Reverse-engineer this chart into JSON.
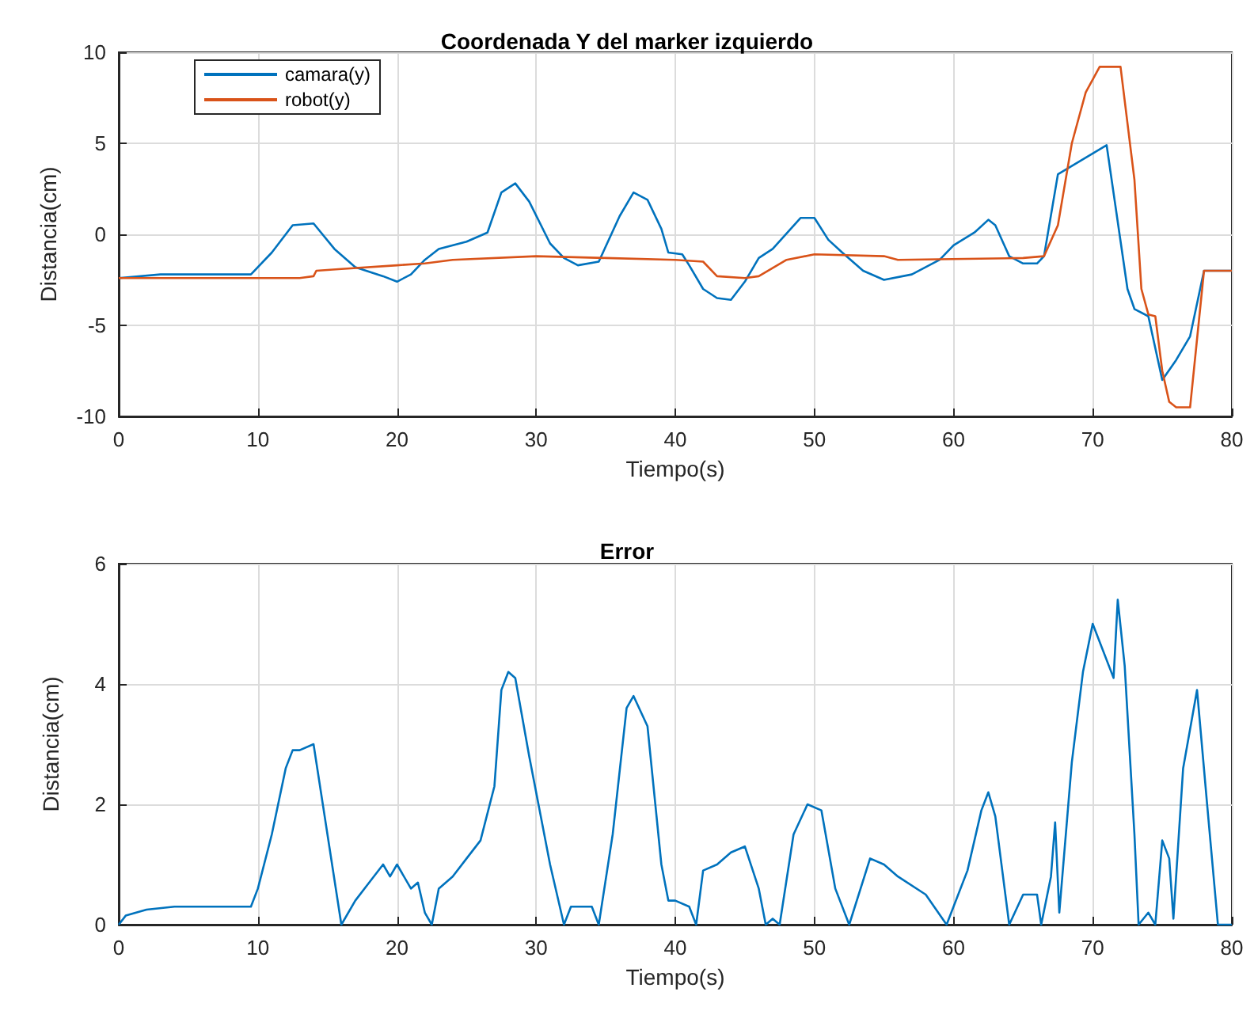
{
  "chart_data": [
    {
      "type": "line",
      "title": "Coordenada Y del marker izquierdo",
      "xlabel": "Tiempo(s)",
      "ylabel": "Distancia(cm)",
      "xlim": [
        0,
        80
      ],
      "xticks": [
        0,
        10,
        20,
        30,
        40,
        50,
        60,
        70,
        80
      ],
      "ylim": [
        -10,
        10
      ],
      "yticks": [
        -10,
        -5,
        0,
        5,
        10
      ],
      "grid": true,
      "legend": "top left",
      "series": [
        {
          "name": "camara(y)",
          "color": "#0072bd",
          "x": [
            0,
            3,
            9.5,
            11,
            12.5,
            14,
            15.5,
            17,
            19,
            20,
            21,
            22,
            23,
            25,
            26.5,
            27.5,
            28.5,
            29.5,
            31,
            32,
            33,
            34.5,
            36,
            37,
            38,
            39,
            39.5,
            40.5,
            41,
            42,
            43,
            44,
            45,
            46,
            47,
            49,
            50,
            51,
            52,
            53.5,
            55,
            57,
            59,
            60,
            61.5,
            62.5,
            63,
            64,
            65,
            66,
            66.5,
            67.5,
            71,
            72.5,
            73,
            74,
            75,
            76,
            77,
            78,
            80
          ],
          "values": [
            -2.4,
            -2.2,
            -2.2,
            -1,
            0.5,
            0.6,
            -0.8,
            -1.8,
            -2.3,
            -2.6,
            -2.2,
            -1.4,
            -0.8,
            -0.4,
            0.1,
            2.3,
            2.8,
            1.8,
            -0.5,
            -1.3,
            -1.7,
            -1.5,
            1,
            2.3,
            1.9,
            0.3,
            -1,
            -1.1,
            -1.7,
            -3,
            -3.5,
            -3.6,
            -2.6,
            -1.3,
            -0.8,
            0.9,
            0.9,
            -0.3,
            -1,
            -2,
            -2.5,
            -2.2,
            -1.4,
            -0.6,
            0.1,
            0.8,
            0.5,
            -1.2,
            -1.6,
            -1.6,
            -1.2,
            3.3,
            4.9,
            -3,
            -4.1,
            -4.5,
            -8,
            -6.9,
            -5.6,
            -2,
            -2
          ]
        },
        {
          "name": "robot(y)",
          "color": "#d95319",
          "x": [
            0,
            13,
            14,
            14.2,
            16,
            20,
            22,
            24,
            30,
            35,
            40,
            42,
            43,
            45,
            46,
            48,
            50,
            55,
            56,
            65,
            66.5,
            67.5,
            68.5,
            69.5,
            70.5,
            72,
            73,
            73.5,
            74,
            74.5,
            75,
            75.5,
            76,
            77,
            78,
            80
          ],
          "values": [
            -2.4,
            -2.4,
            -2.3,
            -2,
            -1.9,
            -1.7,
            -1.6,
            -1.4,
            -1.2,
            -1.3,
            -1.4,
            -1.5,
            -2.3,
            -2.4,
            -2.3,
            -1.4,
            -1.1,
            -1.2,
            -1.4,
            -1.3,
            -1.2,
            0.5,
            5,
            7.8,
            9.2,
            9.2,
            3,
            -3,
            -4.4,
            -4.5,
            -7.5,
            -9.2,
            -9.5,
            -9.5,
            -2,
            -2
          ]
        }
      ]
    },
    {
      "type": "line",
      "title": "Error",
      "xlabel": "Tiempo(s)",
      "ylabel": "Distancia(cm)",
      "xlim": [
        0,
        80
      ],
      "xticks": [
        0,
        10,
        20,
        30,
        40,
        50,
        60,
        70,
        80
      ],
      "ylim": [
        0,
        6
      ],
      "yticks": [
        0,
        2,
        4,
        6
      ],
      "grid": true,
      "series": [
        {
          "color": "#0072bd",
          "x": [
            0,
            0.5,
            2,
            4,
            6,
            8,
            9.5,
            10,
            11,
            12,
            12.5,
            13,
            14,
            15,
            16,
            17,
            18,
            19,
            19.5,
            20,
            21,
            21.5,
            22,
            22.5,
            23,
            24,
            25,
            26,
            27,
            27.5,
            28,
            28.5,
            29.5,
            31,
            32,
            32.5,
            34,
            34.5,
            35.5,
            36.5,
            37,
            38,
            39,
            39.5,
            40,
            41,
            41.5,
            42,
            43,
            44,
            45,
            46,
            46.5,
            47,
            47.5,
            48.5,
            49.5,
            50.5,
            51.5,
            52.5,
            54,
            55,
            56,
            58,
            59.5,
            61,
            62,
            62.5,
            63,
            64,
            65,
            66,
            66.3,
            67,
            67.3,
            67.6,
            68.5,
            69.3,
            70,
            71.5,
            71.8,
            72.3,
            73,
            73.3,
            74,
            74.5,
            75,
            75.5,
            75.8,
            76.5,
            77.5,
            78.3,
            79,
            80
          ],
          "values": [
            0,
            0.15,
            0.25,
            0.3,
            0.3,
            0.3,
            0.3,
            0.6,
            1.5,
            2.6,
            2.9,
            2.9,
            3,
            1.5,
            0,
            0.4,
            0.7,
            1,
            0.8,
            1,
            0.6,
            0.7,
            0.2,
            0,
            0.6,
            0.8,
            1.1,
            1.4,
            2.3,
            3.9,
            4.2,
            4.1,
            2.8,
            1,
            0,
            0.3,
            0.3,
            0,
            1.5,
            3.6,
            3.8,
            3.3,
            1,
            0.4,
            0.4,
            0.3,
            0,
            0.9,
            1,
            1.2,
            1.3,
            0.6,
            0,
            0.1,
            0,
            1.5,
            2,
            1.9,
            0.6,
            0,
            1.1,
            1,
            0.8,
            0.5,
            0,
            0.9,
            1.9,
            2.2,
            1.8,
            0,
            0.5,
            0.5,
            0,
            0.8,
            1.7,
            0.2,
            2.7,
            4.2,
            5,
            4.1,
            5.4,
            4.3,
            1.5,
            0,
            0.2,
            0,
            1.4,
            1.1,
            0.1,
            2.6,
            3.9,
            1.8,
            0,
            0
          ]
        }
      ]
    }
  ]
}
